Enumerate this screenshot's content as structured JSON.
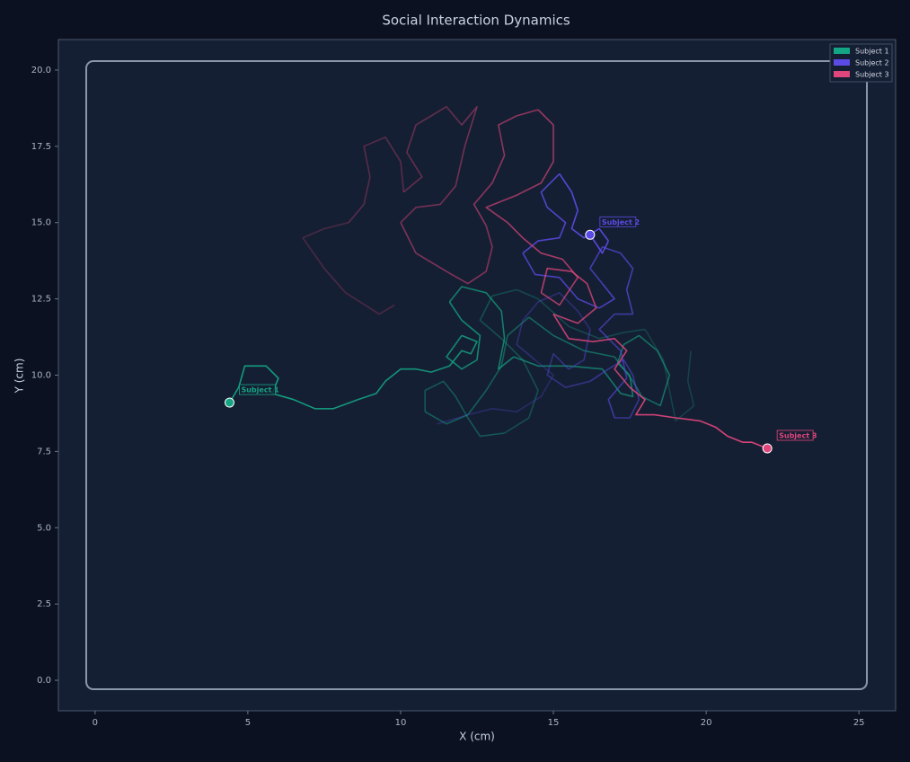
{
  "chart_data": {
    "type": "line",
    "title": "Social Interaction Dynamics",
    "x_label": "X (cm)",
    "y_label": "Y (cm)",
    "xlim": [
      -1.2,
      26.2
    ],
    "ylim": [
      -1.0,
      21.0
    ],
    "xticks": [
      0,
      5,
      10,
      15,
      20,
      25
    ],
    "yticks": [
      {
        "value": 0,
        "label": "0.0"
      },
      2.5,
      {
        "value": 5,
        "label": "5.0"
      },
      7.5,
      {
        "value": 10,
        "label": "10.0"
      },
      12.5,
      {
        "value": 15,
        "label": "15.0"
      },
      17.5,
      {
        "value": 20,
        "label": "20.0"
      }
    ],
    "grid": false,
    "legend": "upper right",
    "series": [
      {
        "name": "Subject 1",
        "color": "#14a585",
        "x": [
          19.5,
          19.4,
          19.6,
          19,
          18.8,
          18.6,
          18,
          17.3,
          16.5,
          15.5,
          14.5,
          13.8,
          13,
          12.6,
          13.3,
          14,
          14.5,
          14.2,
          13.4,
          12.6,
          12.2,
          11.8,
          11.4,
          10.8,
          10.8,
          11.5,
          12.2,
          12.8,
          13.3,
          13.5,
          14.2,
          15,
          16,
          17,
          17.6,
          17.9,
          18.5,
          18.8,
          18.4,
          17.8,
          17.3,
          17.1,
          17.5,
          17.6,
          17.2,
          16.6,
          15.5,
          14.5,
          13.7,
          13.2,
          13.4,
          13.3,
          12.8,
          12,
          11.6,
          12,
          12.6,
          12.5,
          12,
          11.5,
          12,
          12.5,
          12.3,
          12,
          11.6,
          11,
          10.5,
          10,
          9.5,
          9.2,
          8.6,
          7.8,
          7.2,
          6.5,
          5.8,
          6,
          5.6,
          4.9,
          4.7,
          4.4
        ],
        "values": [
          10.8,
          9.8,
          9.0,
          8.5,
          9.5,
          10.5,
          11.5,
          11.4,
          11.2,
          11.6,
          12.5,
          12.8,
          12.6,
          11.8,
          11.2,
          10.5,
          9.5,
          8.6,
          8.1,
          8.0,
          8.6,
          9.3,
          9.8,
          9.5,
          8.8,
          8.4,
          8.7,
          9.5,
          10.3,
          11.3,
          11.9,
          11.3,
          10.8,
          10.6,
          9.8,
          9.3,
          9.0,
          10,
          10.8,
          11.3,
          11.0,
          10.4,
          10.0,
          9.3,
          9.4,
          10.2,
          10.3,
          10.3,
          10.6,
          10.2,
          11.2,
          12.1,
          12.7,
          12.9,
          12.4,
          11.8,
          11.3,
          10.5,
          10.2,
          10.6,
          11.3,
          11.1,
          10.7,
          10.8,
          10.3,
          10.1,
          10.2,
          10.2,
          9.8,
          9.4,
          9.2,
          8.9,
          8.9,
          9.2,
          9.4,
          9.9,
          10.3,
          10.3,
          9.6,
          9.1
        ]
      },
      {
        "name": "Subject 2",
        "color": "#5b4be6",
        "x": [
          11.2,
          12.2,
          13,
          13.8,
          14.6,
          15,
          14.4,
          13.8,
          14,
          14.5,
          15.2,
          15.8,
          16.2,
          16,
          15.5,
          15,
          14.8,
          15.4,
          16.2,
          16.8,
          17.3,
          17.6,
          17.8,
          17.5,
          17,
          16.8,
          17.4,
          17.2,
          16.5,
          17,
          17.6,
          17.4,
          17.6,
          17.2,
          16.6,
          16.2,
          16.6,
          17,
          16.5,
          15.8,
          15.2,
          14.4,
          14,
          14.5,
          15.2,
          15.4,
          14.8,
          14.6,
          15.2,
          15.6,
          15.8,
          15.6,
          16,
          16.5,
          16.8,
          16.6,
          16.2
        ],
        "values": [
          8.4,
          8.7,
          8.9,
          8.8,
          9.3,
          10.0,
          10.5,
          11.0,
          11.8,
          12.4,
          12.7,
          12.1,
          11.5,
          10.5,
          10.2,
          10.7,
          10.0,
          9.6,
          9.8,
          10.2,
          10.5,
          10.0,
          9.2,
          8.6,
          8.6,
          9.2,
          9.9,
          10.8,
          11.5,
          12.0,
          12.0,
          12.8,
          13.5,
          14.0,
          14.2,
          13.5,
          13.0,
          12.5,
          12.2,
          12.5,
          13.2,
          13.3,
          14.0,
          14.4,
          14.5,
          15.0,
          15.5,
          16.0,
          16.6,
          16.0,
          15.4,
          14.8,
          14.5,
          14.8,
          14.4,
          14.0,
          14.6
        ]
      },
      {
        "name": "Subject 3",
        "color": "#e0467c",
        "x": [
          9.8,
          9.3,
          8.2,
          7.5,
          6.8,
          7.5,
          8.3,
          8.8,
          9,
          8.8,
          9.5,
          10,
          10.1,
          10.7,
          10.2,
          10.5,
          11,
          11.5,
          12,
          12.5,
          12.1,
          11.8,
          11.3,
          10.5,
          10,
          10.5,
          11.5,
          12.2,
          12.8,
          13,
          12.8,
          12.4,
          13,
          13.4,
          13.2,
          13.8,
          14.5,
          15,
          15,
          14.6,
          13.8,
          12.8,
          13.5,
          14,
          14.6,
          15.3,
          15.8,
          15.2,
          14.6,
          14.8,
          15.6,
          16.1,
          16.4,
          15.8,
          15,
          15.5,
          16.3,
          17,
          17.4,
          17,
          17.5,
          18,
          17.7,
          18.3,
          19,
          19.8,
          20.3,
          20.7,
          21.2,
          21.5,
          22
        ],
        "values": [
          12.3,
          12.0,
          12.7,
          13.5,
          14.5,
          14.8,
          15.0,
          15.6,
          16.5,
          17.5,
          17.8,
          17.0,
          16.0,
          16.5,
          17.3,
          18.2,
          18.5,
          18.8,
          18.2,
          18.8,
          17.5,
          16.2,
          15.6,
          15.5,
          15.0,
          14.0,
          13.4,
          13.0,
          13.4,
          14.2,
          14.9,
          15.6,
          16.3,
          17.2,
          18.2,
          18.5,
          18.7,
          18.2,
          17.0,
          16.3,
          15.9,
          15.5,
          15.0,
          14.5,
          14.0,
          13.8,
          13.2,
          12.3,
          12.7,
          13.5,
          13.4,
          13.0,
          12.2,
          11.7,
          12.0,
          11.2,
          11.1,
          11.2,
          10.8,
          10.2,
          9.6,
          9.2,
          8.7,
          8.7,
          8.6,
          8.5,
          8.3,
          8.0,
          7.8,
          7.8,
          7.6
        ]
      }
    ]
  }
}
